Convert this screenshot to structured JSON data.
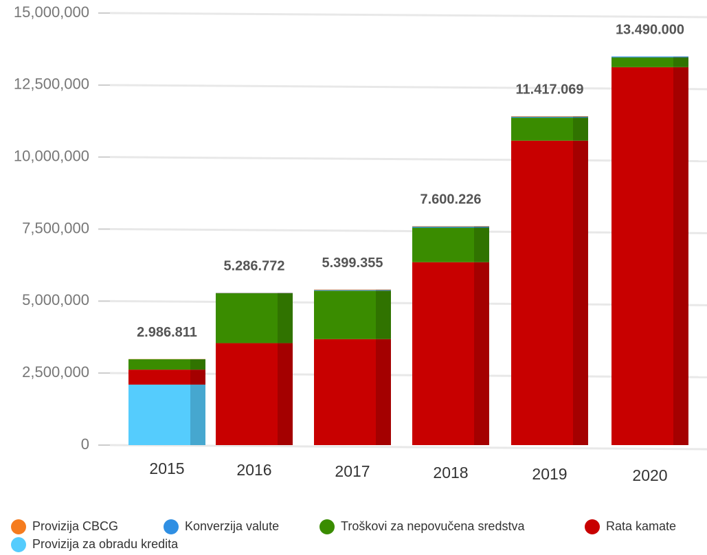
{
  "chart_data": {
    "type": "stacked-bar",
    "categories": [
      "2015",
      "2016",
      "2017",
      "2018",
      "2019",
      "2020"
    ],
    "series": [
      {
        "name": "Provizija za obradu kredita",
        "color": "#55ccfd",
        "values": [
          2100000,
          0,
          0,
          0,
          0,
          0
        ]
      },
      {
        "name": "Rata kamate",
        "color": "#c80000",
        "values": [
          520000,
          3540000,
          3680000,
          6350000,
          10570000,
          13120000
        ]
      },
      {
        "name": "Troškovi za nepovučena sredstva",
        "color": "#3a8c00",
        "values": [
          360000,
          1730000,
          1680000,
          1200000,
          800000,
          340000
        ]
      },
      {
        "name": "Konverzija valute",
        "color": "#2f8fe3",
        "values": [
          0,
          10000,
          25000,
          35000,
          30000,
          30000
        ]
      },
      {
        "name": "Provizija CBCG",
        "color": "#f57c1f",
        "values": [
          6811,
          6772,
          14355,
          15226,
          17069,
          0
        ]
      }
    ],
    "totals": {
      "values": [
        2986811,
        5286772,
        5399355,
        7600226,
        11417069,
        13490000
      ],
      "value_labels": [
        "2.986.811",
        "5.286.772",
        "5.399.355",
        "7.600.226",
        "11.417.069",
        "13.490.000"
      ]
    },
    "ylim": [
      0,
      15000000
    ],
    "yticks": [
      0,
      {
        "value": 2500000,
        "label": "2,500,000"
      },
      {
        "value": 5000000,
        "label": "5,000,000"
      },
      {
        "value": 7500000,
        "label": "7,500,000"
      },
      {
        "value": 10000000,
        "label": "10,000,000"
      },
      {
        "value": 12500000,
        "label": "12,500,000"
      },
      {
        "value": 15000000,
        "label": "15,000,000"
      }
    ],
    "grid": true,
    "legend_order": [
      4,
      3,
      2,
      1,
      0
    ]
  }
}
